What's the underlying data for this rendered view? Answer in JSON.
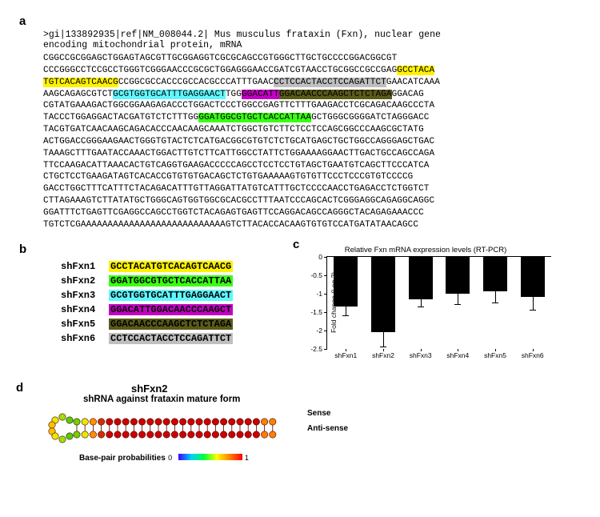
{
  "panelA": {
    "label": "a",
    "header": ">gi|133892935|ref|NM_008044.2| Mus musculus frataxin (Fxn), nuclear gene\nencoding mitochondrial protein, mRNA",
    "lines": [
      [
        {
          "t": "CGGCCGCGGAGCTGGAGTAGCGTTGCGGAGGTCGCGCAGCCGTGGGCTTGCTGCCCCGGACGGCGT"
        }
      ],
      [
        {
          "t": "CCCGGGCCTCCGCCTGGGTCGGGAACCCGCGCTGGAGGGAACCGATCGTAACCTGCGGCCGCCGAG"
        },
        {
          "t": "GCCTACA",
          "c": "hl-yellow"
        }
      ],
      [
        {
          "t": "TGTCACAGTCAACG",
          "c": "hl-yellow"
        },
        {
          "t": "CCGGCGCCACCCGCCACGCCCATTTGAAC"
        },
        {
          "t": "CCTCCACTACCTCCAGATTCT",
          "c": "hl-gray"
        },
        {
          "t": "GAACATCAAA"
        }
      ],
      [
        {
          "t": "AAGCAGAGCGTCT"
        },
        {
          "t": "GCGTGGTGCATTTGAGGAACT",
          "c": "hl-cyan"
        },
        {
          "t": "TGG"
        },
        {
          "t": "GGACATT",
          "c": "hl-magenta"
        },
        {
          "t": "GGACAACCCAAGCTCTCTAGA",
          "c": "hl-olive"
        },
        {
          "t": "GGACAG"
        }
      ],
      [
        {
          "t": "CGTATGAAAGACTGGCGGAAGAGACCCTGGACTCCCTGGCCGAGTTCTTTGAAGACCTCGCAGACAAGCCCTA"
        }
      ],
      [
        {
          "t": "TACCCTGGAGGACTACGATGTCTCTTTGG"
        },
        {
          "t": "GGATGGCGTGCTCACCATTAA",
          "c": "hl-green"
        },
        {
          "t": "GCTGGGCGGGGATCTAGGGACC"
        }
      ],
      [
        {
          "t": "TACGTGATCAACAAGCAGACACCCAACAAGCAAATCTGGCTGTCTTCTCCTCCAGCGGCCCAAGCGCTATG"
        }
      ],
      [
        {
          "t": "ACTGGACCGGGAAGAACTGGGTGTACTCTCATGACGGCGTGTCTCTGCATGAGCTGCTGGCCAGGGAGCTGAC"
        }
      ],
      [
        {
          "t": "TAAAGCTTTGAATACCAAACTGGACTTGTCTTCATTGGCCTATTCTGGAAAAGGAACTTGACTGCCAGCCAGA"
        }
      ],
      [
        {
          "t": "TTCCAAGACATTAAACACTGTCAGGTGAAGACCCCCAGCCTCCTCCTGTAGCTGAATGTCAGCTTCCCATCA"
        }
      ],
      [
        {
          "t": "CTGCTCCTGAAGATAGTCACACCGTGTGTGACAGCTCTGTGAAAAAGTGTGTTCCCTCCCGTGTCCCCG"
        }
      ],
      [
        {
          "t": "GACCTGGCTTTCATTTCTACAGACATTTGTTAGGATTATGTCATTTGCTCCCCAACCTGAGACCTCTGGTCT"
        }
      ],
      [
        {
          "t": "CTTAGAAAGTCTTATATGCTGGGCAGTGGTGGCGCACGCCTTTAATCCCAGCACTCGGGAGGCAGAGGCAGGC"
        }
      ],
      [
        {
          "t": "GGATTTCTGAGTTCGAGGCCAGCCTGGTCTACAGAGTGAGTTCCAGGACAGCCAGGGCTACAGAGAAACCC"
        }
      ],
      [
        {
          "t": "TGTCTCGAAAAAAAAAAAAAAAAAAAAAAAAAAAGTCTTACACCACAAGTGTGTCCATGATATAACAGCC"
        }
      ]
    ]
  },
  "panelB": {
    "label": "b",
    "rows": [
      {
        "name": "shFxn1",
        "seq": "GCCTACATGTCACAGTCAACG",
        "c": "hl-yellow"
      },
      {
        "name": "shFxn2",
        "seq": "GGATGGCGTGCTCACCATTAA",
        "c": "hl-green"
      },
      {
        "name": "shFxn3",
        "seq": "GCGTGGTGCATTTGAGGAACT",
        "c": "hl-cyan"
      },
      {
        "name": "shFxn4",
        "seq": "GGACATTGGACAACCCAAGCT",
        "c": "hl-magenta"
      },
      {
        "name": "shFxn5",
        "seq": "GGACAACCCAAGCTCTCTAGA",
        "c": "hl-olive"
      },
      {
        "name": "shFxn6",
        "seq": "CCTCCACTACCTCCAGATTCT",
        "c": "hl-gray"
      }
    ]
  },
  "panelC": {
    "label": "c",
    "title": "Relative Fxn mRNA expression levels (RT-PCR)",
    "ylabel": "Fold change (Log 2)",
    "ylim": [
      -2.5,
      0
    ],
    "ytick_step": 0.5,
    "categories": [
      "shFxn1",
      "shFxn2",
      "shFxn3",
      "shFxn4",
      "shFxn5",
      "shFxn6"
    ],
    "values": [
      -1.35,
      -2.05,
      -1.15,
      -1.0,
      -0.95,
      -1.1
    ],
    "errors": [
      0.25,
      0.4,
      0.2,
      0.3,
      0.3,
      0.35
    ],
    "bar_color": "#000000",
    "background": "#ffffff"
  },
  "panelD": {
    "label": "d",
    "title": "shFxn2",
    "subtitle": "shRNA against frataxin mature form",
    "sense": "Sense",
    "antisense": "Anti-sense",
    "legend": "Base-pair probabilities",
    "legend_min": "0",
    "legend_max": "1",
    "stem_pairs": 25,
    "loop_residues": 8,
    "stem_color": "#cc0000",
    "stem5_colors": [
      "#70d000",
      "#e8e800",
      "#ff9000",
      "#cc3300"
    ],
    "loop_colors": [
      "#50d000",
      "#a0e000",
      "#e8e800",
      "#ffbf00",
      "#ffbf00",
      "#e8e800",
      "#a0e000",
      "#50d000"
    ]
  }
}
